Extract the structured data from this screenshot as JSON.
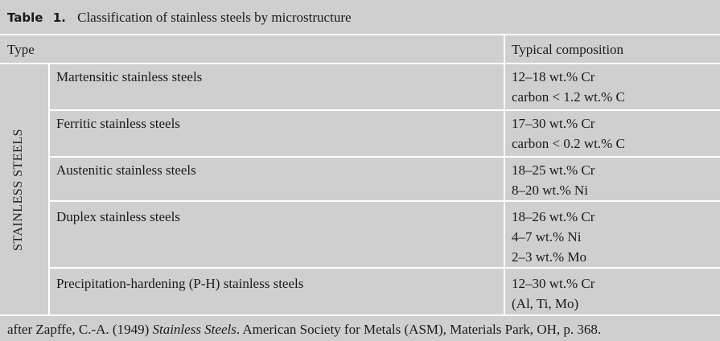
{
  "title": {
    "label": "Table",
    "number": "1.",
    "text": "Classification of stainless steels by microstructure"
  },
  "headers": {
    "type": "Type",
    "composition": "Typical composition"
  },
  "group_label": "STAINLESS STEELS",
  "rows": [
    {
      "type": "Martensitic stainless steels",
      "composition": [
        "12–18 wt.% Cr",
        "carbon < 1.2 wt.% C"
      ]
    },
    {
      "type": "Ferritic stainless steels",
      "composition": [
        "17–30 wt.% Cr",
        "carbon < 0.2 wt.% C"
      ]
    },
    {
      "type": "Austenitic stainless steels",
      "composition": [
        "18–25 wt.% Cr",
        "8–20 wt.% Ni"
      ]
    },
    {
      "type": "Duplex stainless steels",
      "composition": [
        "18–26 wt.% Cr",
        "4–7 wt.% Ni",
        "2–3 wt.% Mo"
      ]
    },
    {
      "type": "Precipitation-hardening (P-H) stainless steels",
      "composition": [
        "12–30 wt.% Cr",
        "(Al, Ti, Mo)"
      ]
    }
  ],
  "footer": {
    "prefix": "after Zapffe, C.-A. (1949) ",
    "book": "Stainless Steels",
    "suffix": ". American Society for Metals (ASM), Materials Park, OH, p. 368."
  },
  "colors": {
    "background": "#cfcfcf",
    "rules": "#ffffff"
  }
}
